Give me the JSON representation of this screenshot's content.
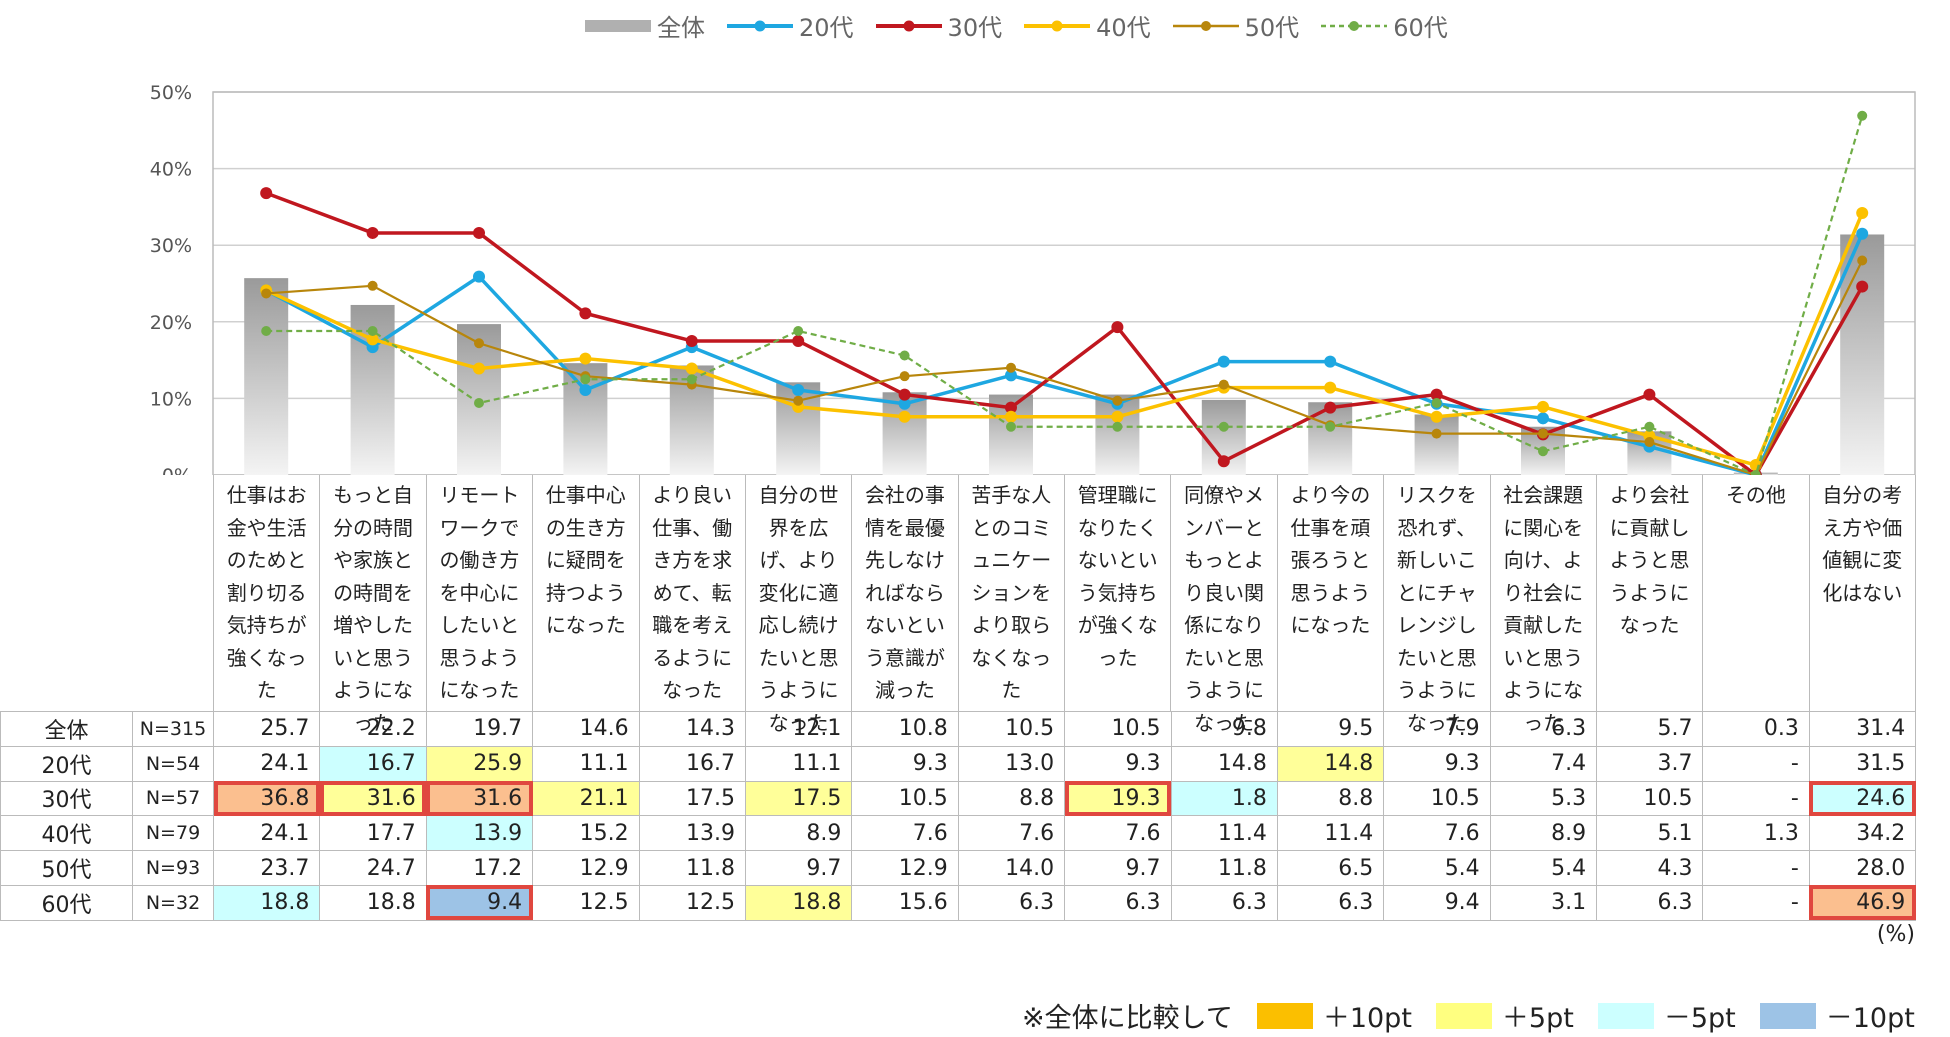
{
  "chart_data": {
    "type": "bar+line",
    "legend": [
      "全体",
      "20代",
      "30代",
      "40代",
      "50代",
      "60代"
    ],
    "categories": [
      "仕事はお金や生活のためと割り切る気持ちが強くなった",
      "もっと自分の時間や家族との時間を増やしたいと思うようになった",
      "リモートワークでの働き方を中心にしたいと思うようになった",
      "仕事中心の生き方に疑問を持つようになった",
      "より良い仕事、働き方を求めて、転職を考えるようになった",
      "自分の世界を広げ、より変化に適応し続けたいと思うようになった",
      "会社の事情を最優先しなければならないという意識が減った",
      "苦手な人とのコミュニケーションをより取らなくなった",
      "管理職になりたくないという気持ちが強くなった",
      "同僚やメンバーともっとより良い関係になりたいと思うようになった",
      "より今の仕事を頑張ろうと思うようになった",
      "リスクを恐れず、新しいことにチャレンジしたいと思うようになった",
      "社会課題に関心を向け、より社会に貢献したいと思うようになった",
      "より会社に貢献しようと思うようになった",
      "その他",
      "自分の考え方や価値観に変化はない"
    ],
    "y_ticks": [
      "0%",
      "10%",
      "20%",
      "30%",
      "40%",
      "50%"
    ],
    "ylim": [
      0,
      50
    ],
    "series": [
      {
        "name": "全体",
        "n": "N=315",
        "color": "#b5b5b5",
        "values": [
          25.7,
          22.2,
          19.7,
          14.6,
          14.3,
          12.1,
          10.8,
          10.5,
          10.5,
          9.8,
          9.5,
          7.9,
          6.3,
          5.7,
          0.3,
          31.4
        ]
      },
      {
        "name": "20代",
        "n": "N=54",
        "color": "#1ea7e1",
        "values": [
          24.1,
          16.7,
          25.9,
          11.1,
          16.7,
          11.1,
          9.3,
          13.0,
          9.3,
          14.8,
          14.8,
          9.3,
          7.4,
          3.7,
          0,
          31.5
        ]
      },
      {
        "name": "30代",
        "n": "N=57",
        "color": "#c0171f",
        "values": [
          36.8,
          31.6,
          31.6,
          21.1,
          17.5,
          17.5,
          10.5,
          8.8,
          19.3,
          1.8,
          8.8,
          10.5,
          5.3,
          10.5,
          0,
          24.6
        ]
      },
      {
        "name": "40代",
        "n": "N=79",
        "color": "#fcc100",
        "values": [
          24.1,
          17.7,
          13.9,
          15.2,
          13.9,
          8.9,
          7.6,
          7.6,
          7.6,
          11.4,
          11.4,
          7.6,
          8.9,
          5.1,
          1.3,
          34.2
        ]
      },
      {
        "name": "50代",
        "n": "N=93",
        "color": "#b8860b",
        "values": [
          23.7,
          24.7,
          17.2,
          12.9,
          11.8,
          9.7,
          12.9,
          14.0,
          9.7,
          11.8,
          6.5,
          5.4,
          5.4,
          4.3,
          0,
          28.0
        ]
      },
      {
        "name": "60代",
        "n": "N=32",
        "color": "#70ad47",
        "values": [
          18.8,
          18.8,
          9.4,
          12.5,
          12.5,
          18.8,
          15.6,
          6.3,
          6.3,
          6.3,
          6.3,
          9.4,
          3.1,
          6.3,
          0,
          46.9
        ]
      }
    ],
    "table_text": [
      [
        "25.7",
        "22.2",
        "19.7",
        "14.6",
        "14.3",
        "12.1",
        "10.8",
        "10.5",
        "10.5",
        "9.8",
        "9.5",
        "7.9",
        "6.3",
        "5.7",
        "0.3",
        "31.4"
      ],
      [
        "24.1",
        "16.7",
        "25.9",
        "11.1",
        "16.7",
        "11.1",
        "9.3",
        "13.0",
        "9.3",
        "14.8",
        "14.8",
        "9.3",
        "7.4",
        "3.7",
        "-",
        "31.5"
      ],
      [
        "36.8",
        "31.6",
        "31.6",
        "21.1",
        "17.5",
        "17.5",
        "10.5",
        "8.8",
        "19.3",
        "1.8",
        "8.8",
        "10.5",
        "5.3",
        "10.5",
        "-",
        "24.6"
      ],
      [
        "24.1",
        "17.7",
        "13.9",
        "15.2",
        "13.9",
        "8.9",
        "7.6",
        "7.6",
        "7.6",
        "11.4",
        "11.4",
        "7.6",
        "8.9",
        "5.1",
        "1.3",
        "34.2"
      ],
      [
        "23.7",
        "24.7",
        "17.2",
        "12.9",
        "11.8",
        "9.7",
        "12.9",
        "14.0",
        "9.7",
        "11.8",
        "6.5",
        "5.4",
        "5.4",
        "4.3",
        "-",
        "28.0"
      ],
      [
        "18.8",
        "18.8",
        "9.4",
        "12.5",
        "12.5",
        "18.8",
        "15.6",
        "6.3",
        "6.3",
        "6.3",
        "6.3",
        "9.4",
        "3.1",
        "6.3",
        "-",
        "46.9"
      ]
    ],
    "highlights": [
      {
        "row": 1,
        "col": 1,
        "level": "minus5"
      },
      {
        "row": 1,
        "col": 2,
        "level": "plus5"
      },
      {
        "row": 1,
        "col": 10,
        "level": "plus5"
      },
      {
        "row": 2,
        "col": 0,
        "level": "plus10",
        "box": true
      },
      {
        "row": 2,
        "col": 1,
        "level": "plus5",
        "box": true
      },
      {
        "row": 2,
        "col": 2,
        "level": "plus10",
        "box": true
      },
      {
        "row": 2,
        "col": 3,
        "level": "plus5"
      },
      {
        "row": 2,
        "col": 5,
        "level": "plus5"
      },
      {
        "row": 2,
        "col": 8,
        "level": "plus5",
        "box": true
      },
      {
        "row": 2,
        "col": 9,
        "level": "minus5"
      },
      {
        "row": 2,
        "col": 15,
        "level": "minus5",
        "box": true
      },
      {
        "row": 3,
        "col": 2,
        "level": "minus5"
      },
      {
        "row": 5,
        "col": 0,
        "level": "minus5"
      },
      {
        "row": 5,
        "col": 2,
        "level": "minus10",
        "box": true
      },
      {
        "row": 5,
        "col": 5,
        "level": "plus5"
      },
      {
        "row": 5,
        "col": 15,
        "level": "plus10",
        "box": true
      }
    ],
    "highlight_colors": {
      "plus10": "#fbbf8f",
      "plus5": "#ffff99",
      "minus5": "#ccffff",
      "minus10": "#9dc3e6"
    },
    "unit_note": "(%)",
    "note": {
      "prefix": "※全体に比較して",
      "items": [
        {
          "label": "＋10pt",
          "color": "#fbbf00"
        },
        {
          "label": "＋5pt",
          "color": "#ffff80"
        },
        {
          "label": "－5pt",
          "color": "#ccffff"
        },
        {
          "label": "－10pt",
          "color": "#9dc3e6"
        }
      ]
    }
  }
}
